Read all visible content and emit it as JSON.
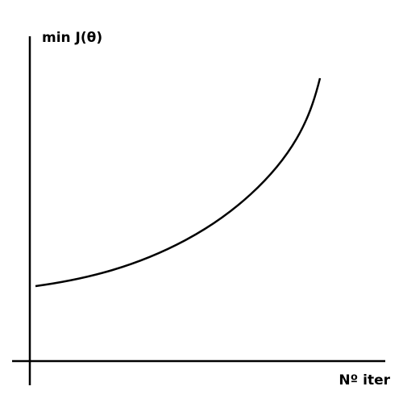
{
  "chart_data": {
    "type": "line",
    "y_label": "min J(θ)",
    "x_label": "Nº iter"
  }
}
